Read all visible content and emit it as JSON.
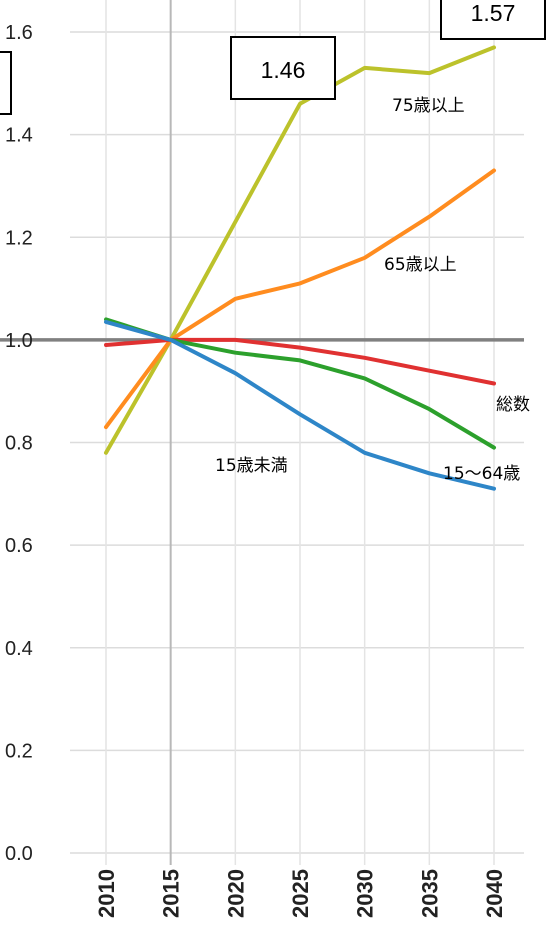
{
  "chart_data": {
    "type": "line",
    "x": [
      2010,
      2015,
      2020,
      2025,
      2030,
      2035,
      2040
    ],
    "xticklabels": [
      "2010",
      "2015",
      "2020",
      "2025",
      "2030",
      "2035",
      "2040"
    ],
    "yticks": [
      0.0,
      0.2,
      0.4,
      0.6,
      0.8,
      1.0,
      1.2,
      1.4,
      1.6
    ],
    "yticklabels": [
      "0.0",
      "0.2",
      "0.4",
      "0.6",
      "0.8",
      "1.0",
      "1.2",
      "1.4",
      "1.6"
    ],
    "ylim": [
      0.0,
      1.6
    ],
    "xlim": [
      2010,
      2040
    ],
    "grid": true,
    "reference_line": 1.0,
    "series": [
      {
        "name": "75歳以上",
        "color": "#bcc22b",
        "values": [
          0.78,
          1.0,
          1.23,
          1.46,
          1.53,
          1.52,
          1.57
        ]
      },
      {
        "name": "65歳以上",
        "color": "#ff8c1f",
        "values": [
          0.83,
          1.0,
          1.08,
          1.11,
          1.16,
          1.24,
          1.33
        ]
      },
      {
        "name": "総数",
        "color": "#e03131",
        "values": [
          0.99,
          1.0,
          1.0,
          0.985,
          0.965,
          0.94,
          0.915
        ]
      },
      {
        "name": "15～64歳",
        "color": "#2ca02c",
        "values": [
          1.04,
          1.0,
          0.975,
          0.96,
          0.925,
          0.865,
          0.79
        ]
      },
      {
        "name": "15歳未満",
        "color": "#2e86c8",
        "values": [
          1.035,
          1.0,
          0.935,
          0.855,
          0.78,
          0.74,
          0.71
        ]
      }
    ],
    "callouts": [
      {
        "text": "1.46"
      },
      {
        "text": "1.57"
      }
    ]
  }
}
